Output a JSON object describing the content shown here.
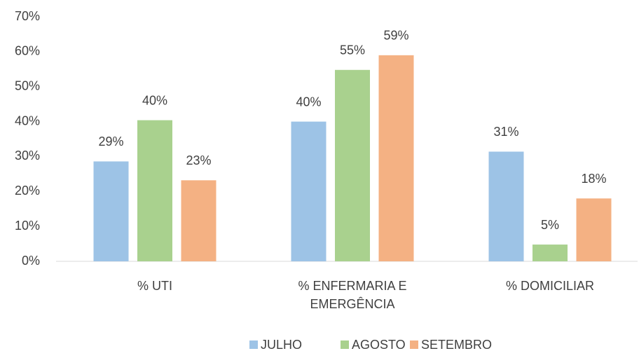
{
  "chart_data": {
    "type": "bar",
    "categories": [
      "% UTI",
      "% ENFERMARIA E EMERGÊNCIA",
      "% DOMICILIAR"
    ],
    "series": [
      {
        "name": "JULHO",
        "color": "#9dc3e6",
        "values": [
          28.6,
          40,
          31.4
        ],
        "value_labels": [
          "29%",
          "40%",
          "31%"
        ]
      },
      {
        "name": "AGOSTO",
        "color": "#a9d18e",
        "values": [
          40.4,
          54.8,
          4.8
        ],
        "value_labels": [
          "40%",
          "55%",
          "5%"
        ]
      },
      {
        "name": "SETEMBRO",
        "color": "#f4b183",
        "values": [
          23.2,
          59,
          18
        ],
        "value_labels": [
          "23%",
          "59%",
          "18%"
        ]
      }
    ],
    "ylim": [
      0,
      70
    ],
    "yticks": [
      {
        "value": 0,
        "label": "0%"
      },
      {
        "value": 10,
        "label": "10%"
      },
      {
        "value": 20,
        "label": "20%"
      },
      {
        "value": 30,
        "label": "30%"
      },
      {
        "value": 40,
        "label": "40%"
      },
      {
        "value": 50,
        "label": "50%"
      },
      {
        "value": 60,
        "label": "60%"
      },
      {
        "value": 70,
        "label": "70%"
      }
    ],
    "grid": false,
    "legend": "bottom"
  }
}
